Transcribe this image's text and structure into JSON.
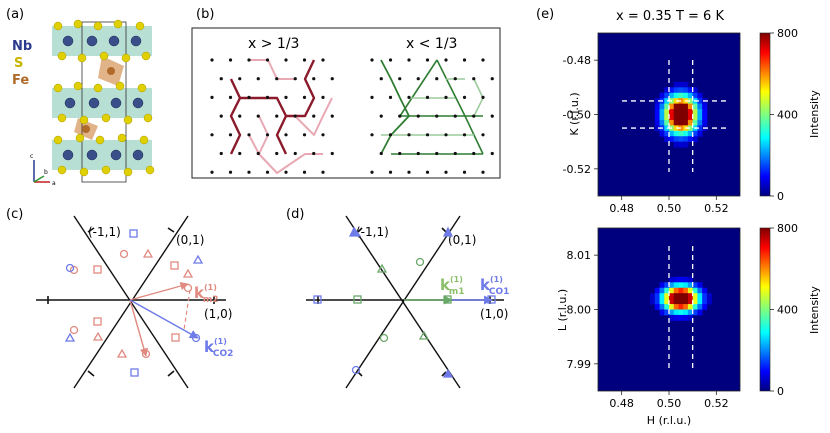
{
  "panels": {
    "a": {
      "label": "(a)",
      "elements": [
        "Nb",
        "S",
        "Fe"
      ],
      "axes": [
        "c",
        "b",
        "a"
      ]
    },
    "b": {
      "label": "(b)",
      "left_title": "x > 1/3",
      "right_title": "x < 1/3"
    },
    "c": {
      "label": "(c)",
      "dir_labels": [
        "(-1,1)",
        "(0,1)",
        "(1,0)"
      ],
      "vec_labels": [
        {
          "main": "k",
          "sup": "(1)",
          "sub": "m2"
        },
        {
          "main": "k",
          "sup": "(1)",
          "sub": "CO2"
        }
      ]
    },
    "d": {
      "label": "(d)",
      "dir_labels": [
        "(-1,1)",
        "(0,1)",
        "(1,0)"
      ],
      "vec_labels": [
        {
          "main": "k",
          "sup": "(1)",
          "sub": "m1"
        },
        {
          "main": "k",
          "sup": "(1)",
          "sub": "CO1"
        }
      ]
    },
    "e": {
      "label": "(e)",
      "title": "x = 0.35  T = 6 K"
    }
  },
  "colors": {
    "dark_red": "#8b1a2b",
    "light_pink": "#e8a8b4",
    "dark_green": "#2e7d32",
    "light_green": "#9ccc9c",
    "salmon": "#e08a80",
    "blue": "#6e7be8",
    "green_marker": "#6aa86a"
  },
  "chart_data": [
    {
      "type": "heatmap",
      "title": "x = 0.35  T = 6 K",
      "xlabel": "",
      "ylabel": "K (r.l.u.)",
      "xlim": [
        0.47,
        0.53
      ],
      "ylim": [
        -0.53,
        -0.47
      ],
      "xticks": [
        "0.48",
        "0.50",
        "0.52"
      ],
      "yticks": [
        "-0.48",
        "-0.50",
        "-0.52"
      ],
      "peak": {
        "h": 0.505,
        "k": -0.5
      },
      "dashed_lines": {
        "h": [
          0.5,
          0.51
        ],
        "k": [
          -0.495,
          -0.505
        ]
      },
      "colorbar": {
        "label": "Intensity",
        "ticks": [
          "800",
          "400",
          "0"
        ],
        "range": [
          0,
          800
        ]
      }
    },
    {
      "type": "heatmap",
      "title": "",
      "xlabel": "H (r.l.u.)",
      "ylabel": "L (r.l.u.)",
      "xlim": [
        0.47,
        0.53
      ],
      "ylim": [
        7.985,
        8.015
      ],
      "xticks": [
        "0.48",
        "0.50",
        "0.52"
      ],
      "yticks": [
        "8.01",
        "8.00",
        "7.99"
      ],
      "peak": {
        "h": 0.505,
        "l": 8.002
      },
      "dashed_lines": {
        "h": [
          0.5,
          0.51
        ]
      },
      "colorbar": {
        "label": "Intensity",
        "ticks": [
          "800",
          "400",
          "0"
        ],
        "range": [
          0,
          800
        ]
      }
    }
  ]
}
